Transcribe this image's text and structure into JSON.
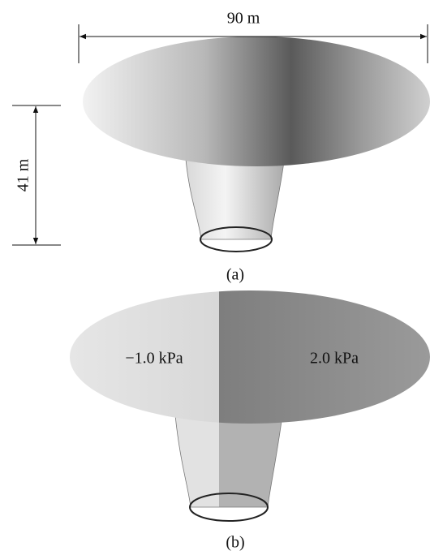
{
  "panels": [
    {
      "dimensions": {
        "width": "90 m",
        "height": "41 m"
      },
      "caption": "(a)"
    },
    {
      "pressures": {
        "left": "−1.0 kPa",
        "right": "2.0 kPa"
      },
      "caption": "(b)"
    }
  ]
}
